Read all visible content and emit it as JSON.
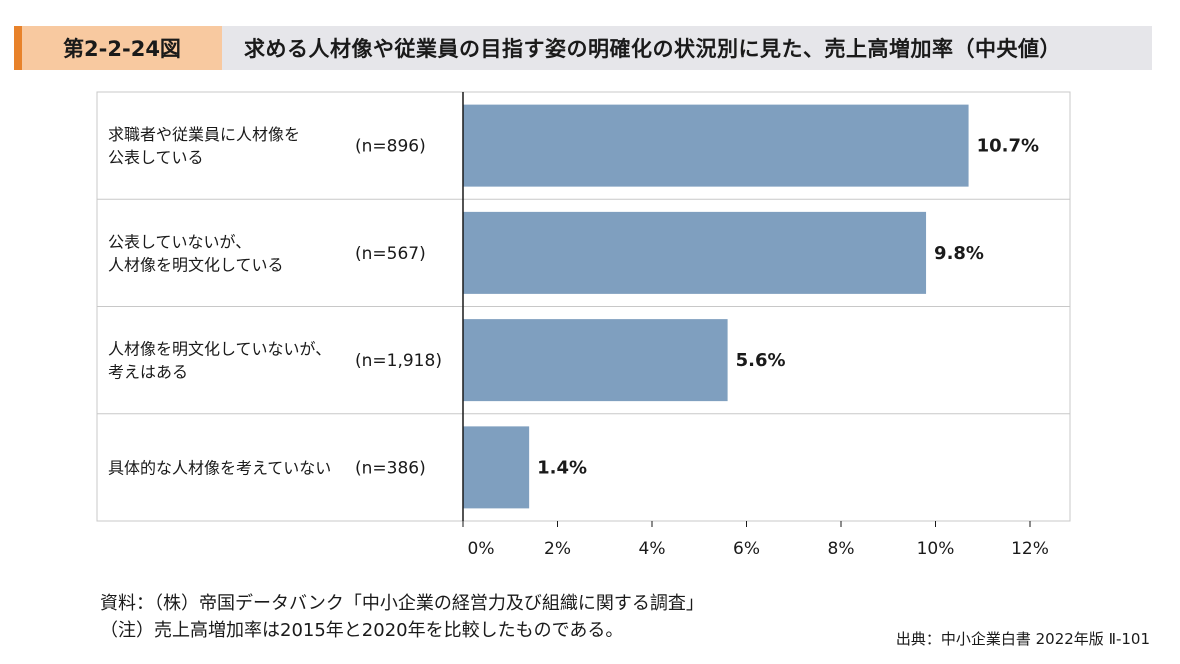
{
  "header": {
    "figure_number": "第2-2-24図",
    "title": "求める人材像や従業員の目指す姿の明確化の状況別に見た、売上高増加率（中央値）"
  },
  "chart_data": {
    "type": "bar",
    "orientation": "horizontal",
    "categories": [
      {
        "label_lines": [
          "求職者や従業員に人材像を",
          "公表している"
        ],
        "n": "(n=896)"
      },
      {
        "label_lines": [
          "公表していないが、",
          "人材像を明文化している"
        ],
        "n": "(n=567)"
      },
      {
        "label_lines": [
          "人材像を明文化していないが、",
          "考えはある"
        ],
        "n": "(n=1,918)"
      },
      {
        "label_lines": [
          "具体的な人材像を考えていない"
        ],
        "n": "(n=386)"
      }
    ],
    "values": [
      10.7,
      9.8,
      5.6,
      1.4
    ],
    "data_labels": [
      "10.7%",
      "9.8%",
      "5.6%",
      "1.4%"
    ],
    "x_ticks": [
      "0%",
      "2%",
      "4%",
      "6%",
      "8%",
      "10%",
      "12%"
    ],
    "xlim": [
      0,
      12
    ],
    "bar_color": "#7f9fbf",
    "grid": false
  },
  "notes": {
    "source_line": "資料：（株）帝国データバンク「中小企業の経営力及び組織に関する調査」",
    "note_line": "（注）売上高増加率は2015年と2020年を比較したものである。"
  },
  "publication": "出典：中小企業白書 2022年版 Ⅱ-101"
}
